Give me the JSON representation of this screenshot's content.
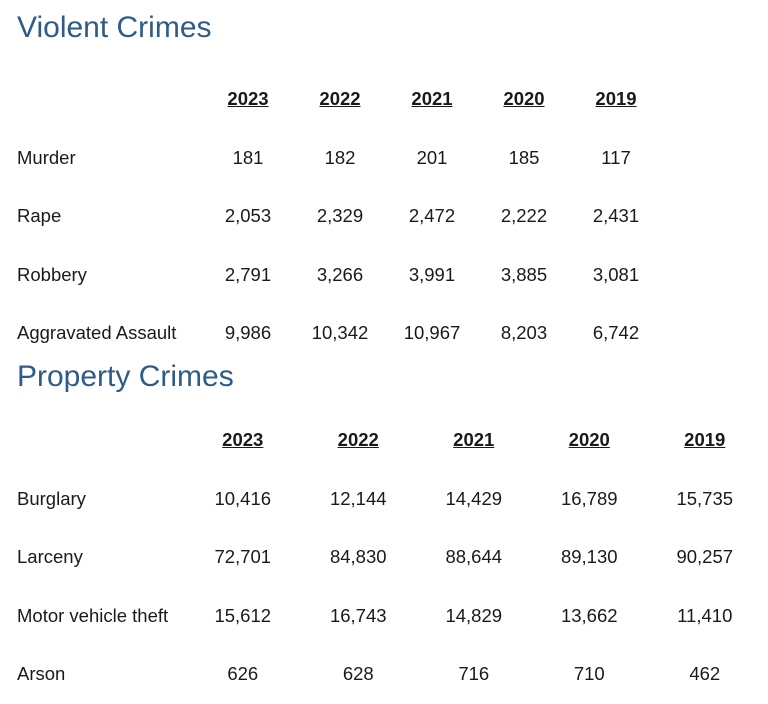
{
  "violent": {
    "title": "Violent Crimes",
    "years": [
      "2023",
      "2022",
      "2021",
      "2020",
      "2019"
    ],
    "rows": [
      {
        "label": "Murder",
        "values": [
          "181",
          "182",
          "201",
          "185",
          "117"
        ]
      },
      {
        "label": "Rape",
        "values": [
          "2,053",
          "2,329",
          "2,472",
          "2,222",
          "2,431"
        ]
      },
      {
        "label": "Robbery",
        "values": [
          "2,791",
          "3,266",
          "3,991",
          "3,885",
          "3,081"
        ]
      },
      {
        "label": "Aggravated Assault",
        "values": [
          "9,986",
          "10,342",
          "10,967",
          "8,203",
          "6,742"
        ]
      }
    ]
  },
  "property": {
    "title": "Property Crimes",
    "years": [
      "2023",
      "2022",
      "2021",
      "2020",
      "2019"
    ],
    "rows": [
      {
        "label": "Burglary",
        "values": [
          "10,416",
          "12,144",
          "14,429",
          "16,789",
          "15,735"
        ]
      },
      {
        "label": "Larceny",
        "values": [
          "72,701",
          "84,830",
          "88,644",
          "89,130",
          "90,257"
        ]
      },
      {
        "label": "Motor vehicle theft",
        "values": [
          "15,612",
          "16,743",
          "14,829",
          "13,662",
          "11,410"
        ]
      },
      {
        "label": "Arson",
        "values": [
          "626",
          "628",
          "716",
          "710",
          "462"
        ]
      }
    ]
  },
  "colors": {
    "heading": "#2e5b8a",
    "text": "#1a1a1a"
  }
}
